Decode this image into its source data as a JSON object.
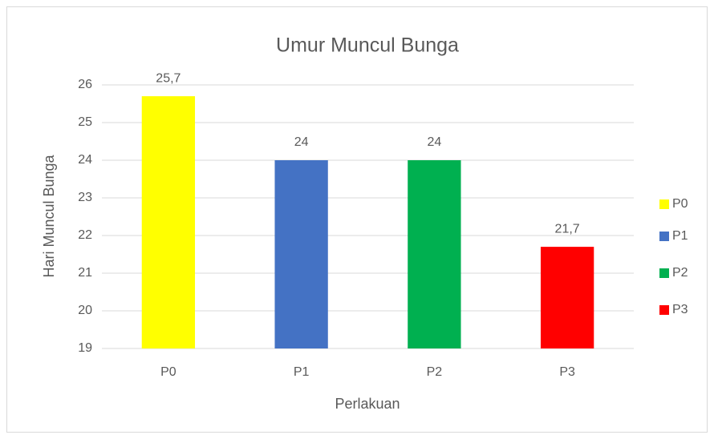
{
  "chart_data": {
    "type": "bar",
    "title": "Umur Muncul Bunga",
    "x_label": "Perlakuan",
    "y_label": "Hari Muncul Bunga",
    "categories": [
      "P0",
      "P1",
      "P2",
      "P3"
    ],
    "values": [
      25.7,
      24,
      24,
      21.7
    ],
    "value_labels": [
      "25,7",
      "24",
      "24",
      "21,7"
    ],
    "colors": [
      "#ffff00",
      "#4472c4",
      "#00b050",
      "#ff0000"
    ],
    "ylim": [
      19,
      26
    ],
    "yticks": [
      19,
      20,
      21,
      22,
      23,
      24,
      25,
      26
    ],
    "grid": true,
    "legend": "right"
  }
}
